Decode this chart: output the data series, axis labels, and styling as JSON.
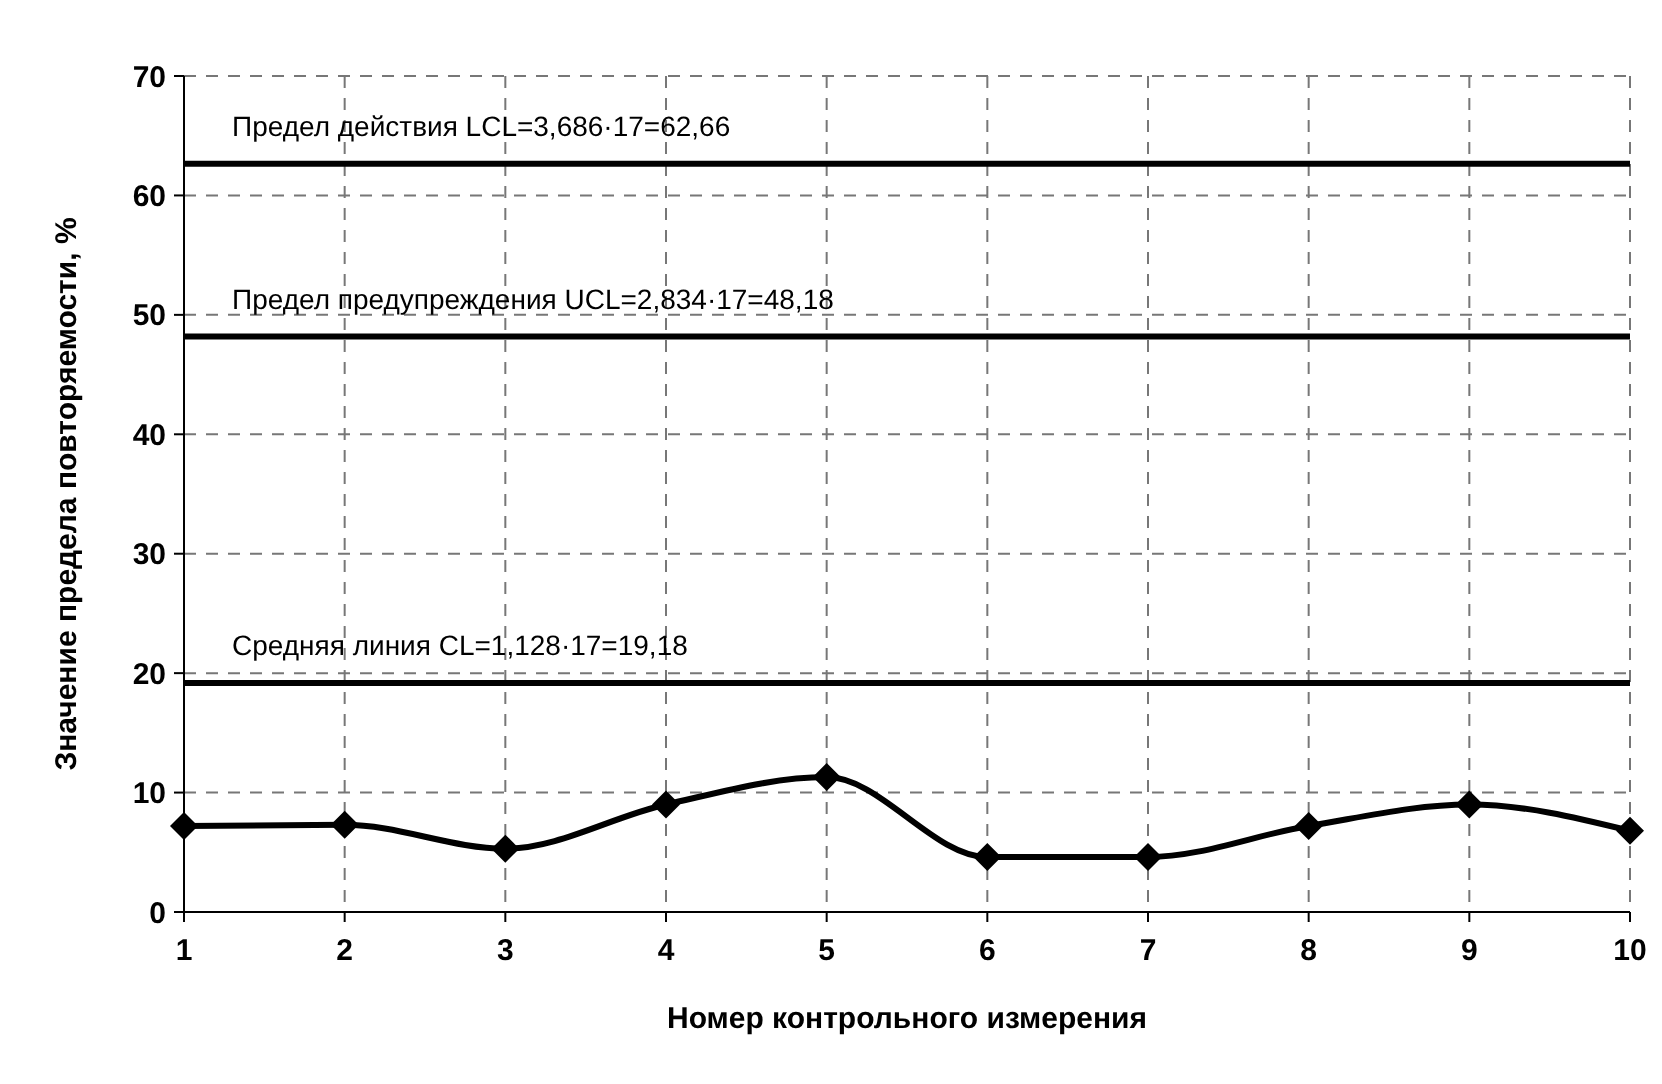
{
  "chart_data": {
    "type": "line",
    "xlabel": "Номер контрольного измерения",
    "ylabel": "Значение предела повторяемости, %",
    "x": [
      1,
      2,
      3,
      4,
      5,
      6,
      7,
      8,
      9,
      10
    ],
    "series": [
      {
        "color": "#000000",
        "values": [
          7.2,
          7.3,
          5.3,
          9.0,
          11.3,
          4.6,
          4.6,
          7.2,
          9.0,
          6.8
        ]
      }
    ],
    "xlim": [
      1,
      10
    ],
    "xticks": [
      1,
      2,
      3,
      4,
      5,
      6,
      7,
      8,
      9,
      10
    ],
    "ylim": [
      0,
      70
    ],
    "yticks": [
      0,
      10,
      20,
      30,
      40,
      50,
      60,
      70
    ],
    "grid": true,
    "marker": "diamond",
    "line_style": "solid",
    "ref_lines": [
      {
        "axis": "y",
        "value": 62.66,
        "label": "Предел действия LCL=3,686·17=62,66",
        "color": "#000000"
      },
      {
        "axis": "y",
        "value": 48.18,
        "label": "Предел предупреждения UCL=2,834·17=48,18",
        "color": "#000000"
      },
      {
        "axis": "y",
        "value": 19.18,
        "label": "Средняя линия CL=1,128·17=19,18",
        "color": "#000000"
      }
    ]
  }
}
